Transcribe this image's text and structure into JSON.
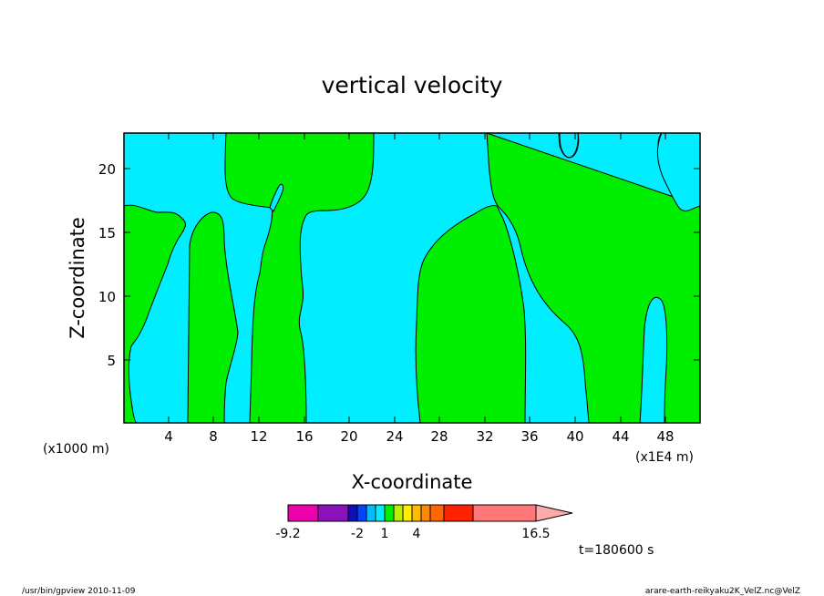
{
  "chart_data": {
    "type": "contour",
    "title": "vertical velocity",
    "xlabel": "X-coordinate",
    "ylabel": "Z-coordinate",
    "x_scale_note": "(x1E4 m)",
    "y_scale_note": "(x1000 m)",
    "xlim": [
      0,
      52
    ],
    "ylim": [
      0,
      23
    ],
    "x_ticks": [
      "4",
      "8",
      "12",
      "16",
      "20",
      "24",
      "28",
      "32",
      "36",
      "40",
      "44",
      "48"
    ],
    "y_ticks": [
      "5",
      "10",
      "15",
      "20"
    ],
    "regions": [
      {
        "name": "negative",
        "color": "#00eeff"
      },
      {
        "name": "positive",
        "color": "#00ee00"
      }
    ],
    "colorbar": {
      "labels": [
        "-9.2",
        "-2",
        "1",
        "4",
        "16.5"
      ],
      "colors": [
        "#ee00aa",
        "#8a11bb",
        "#1010bb",
        "#0044ff",
        "#00bbff",
        "#00eeff",
        "#00ee00",
        "#bbee00",
        "#ffee00",
        "#ffbb00",
        "#ff8800",
        "#ff6600",
        "#ff2200",
        "#ff7777",
        "#ffaaaa"
      ]
    },
    "time_label": "t=180600 s"
  },
  "footer": {
    "left": "/usr/bin/gpview  2010-11-09",
    "right": "arare-earth-reikyaku2K_VelZ.nc@VelZ"
  }
}
